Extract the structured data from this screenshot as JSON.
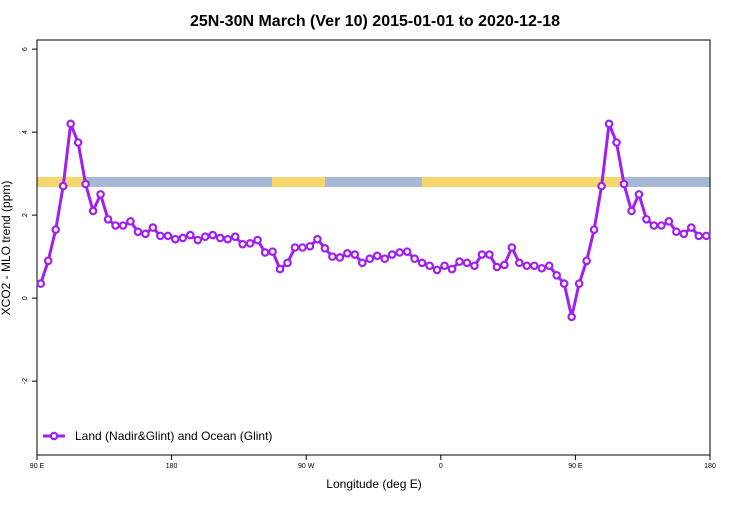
{
  "chart_data": {
    "type": "line",
    "title": "25N-30N March (Ver 10)   2015-01-01 to 2020-12-18",
    "xlabel": "Longitude (deg E)",
    "ylabel": "XCO2 - MLO trend (ppm)",
    "x": [
      92.5,
      97.5,
      102.5,
      107.5,
      112.5,
      117.5,
      122.5,
      127.5,
      132.5,
      137.5,
      142.5,
      147.5,
      152.5,
      157.5,
      162.5,
      167.5,
      172.5,
      177.5,
      182.5,
      187.5,
      192.5,
      197.5,
      202.5,
      207.5,
      212.5,
      217.5,
      222.5,
      227.5,
      232.5,
      237.5,
      242.5,
      247.5,
      252.5,
      257.5,
      262.5,
      267.5,
      272.5,
      277.5,
      282.5,
      287.5,
      292.5,
      297.5,
      302.5,
      307.5,
      312.5,
      317.5,
      322.5,
      327.5,
      332.5,
      337.5,
      342.5,
      347.5,
      352.5,
      357.5,
      362.5,
      367.5,
      372.5,
      377.5,
      382.5,
      387.5,
      392.5,
      397.5,
      402.5,
      407.5,
      412.5,
      417.5,
      422.5,
      427.5,
      432.5,
      437.5,
      442.5,
      447.5,
      452.5,
      457.5,
      462.5,
      467.5,
      472.5,
      477.5,
      482.5,
      487.5,
      492.5,
      497.5,
      502.5,
      507.5,
      512.5,
      517.5,
      522.5,
      527.5,
      532.5,
      537.5
    ],
    "series": [
      {
        "name": "Land (Nadir&Glint) and Ocean (Glint)",
        "color": "#a020f0",
        "values": [
          0.35,
          0.9,
          1.65,
          2.7,
          4.2,
          3.75,
          2.75,
          2.1,
          2.5,
          1.9,
          1.75,
          1.75,
          1.85,
          1.6,
          1.55,
          1.7,
          1.5,
          1.5,
          1.42,
          1.45,
          1.52,
          1.4,
          1.48,
          1.52,
          1.45,
          1.42,
          1.48,
          1.3,
          1.32,
          1.4,
          1.1,
          1.12,
          0.7,
          0.85,
          1.22,
          1.22,
          1.25,
          1.42,
          1.2,
          1.0,
          0.98,
          1.08,
          1.05,
          0.85,
          0.95,
          1.02,
          0.95,
          1.05,
          1.1,
          1.12,
          0.95,
          0.85,
          0.78,
          0.68,
          0.78,
          0.7,
          0.88,
          0.85,
          0.78,
          1.05,
          1.05,
          0.75,
          0.8,
          1.22,
          0.85,
          0.78,
          0.78,
          0.72,
          0.78,
          0.55,
          0.35,
          -0.45,
          0.35,
          0.9,
          1.65,
          2.7,
          4.2,
          3.75,
          2.75,
          2.1,
          2.5,
          1.9,
          1.75,
          1.75,
          1.85,
          1.6,
          1.55,
          1.7,
          1.5,
          1.5
        ]
      }
    ],
    "xlim": [
      90,
      540
    ],
    "xticks": [
      {
        "value": 90,
        "label": "90 E"
      },
      180,
      {
        "value": 270,
        "label": "90 W"
      },
      {
        "value": 360,
        "label": "0"
      },
      {
        "value": 450,
        "label": "90 E"
      },
      180.0001
    ],
    "ylim": [
      -3.78,
      6.22
    ],
    "yticks": [
      -2,
      0,
      2,
      4,
      6
    ],
    "legend": "bottomleft"
  }
}
